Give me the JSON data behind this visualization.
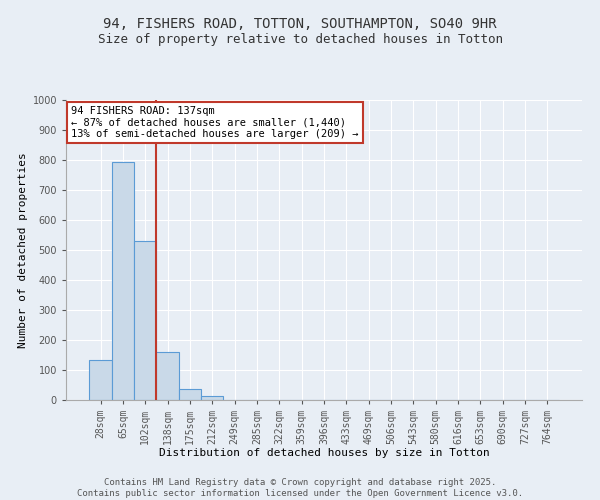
{
  "title": "94, FISHERS ROAD, TOTTON, SOUTHAMPTON, SO40 9HR",
  "subtitle": "Size of property relative to detached houses in Totton",
  "xlabel": "Distribution of detached houses by size in Totton",
  "ylabel": "Number of detached properties",
  "categories": [
    "28sqm",
    "65sqm",
    "102sqm",
    "138sqm",
    "175sqm",
    "212sqm",
    "249sqm",
    "285sqm",
    "322sqm",
    "359sqm",
    "396sqm",
    "433sqm",
    "469sqm",
    "506sqm",
    "543sqm",
    "580sqm",
    "616sqm",
    "653sqm",
    "690sqm",
    "727sqm",
    "764sqm"
  ],
  "values": [
    135,
    795,
    530,
    160,
    37,
    12,
    0,
    0,
    0,
    0,
    0,
    0,
    0,
    0,
    0,
    0,
    0,
    0,
    0,
    0,
    0
  ],
  "bar_color": "#c9d9e8",
  "bar_edge_color": "#5b9bd5",
  "bar_linewidth": 0.8,
  "vline_x": 2.5,
  "vline_color": "#c0392b",
  "vline_linewidth": 1.5,
  "annotation_text": "94 FISHERS ROAD: 137sqm\n← 87% of detached houses are smaller (1,440)\n13% of semi-detached houses are larger (209) →",
  "annotation_box_color": "#ffffff",
  "annotation_box_edge": "#c0392b",
  "ylim": [
    0,
    1000
  ],
  "yticks": [
    0,
    100,
    200,
    300,
    400,
    500,
    600,
    700,
    800,
    900,
    1000
  ],
  "background_color": "#e8eef5",
  "grid_color": "#ffffff",
  "footer_line1": "Contains HM Land Registry data © Crown copyright and database right 2025.",
  "footer_line2": "Contains public sector information licensed under the Open Government Licence v3.0.",
  "title_fontsize": 10,
  "subtitle_fontsize": 9,
  "xlabel_fontsize": 8,
  "ylabel_fontsize": 8,
  "tick_fontsize": 7,
  "annotation_fontsize": 7.5,
  "footer_fontsize": 6.5
}
